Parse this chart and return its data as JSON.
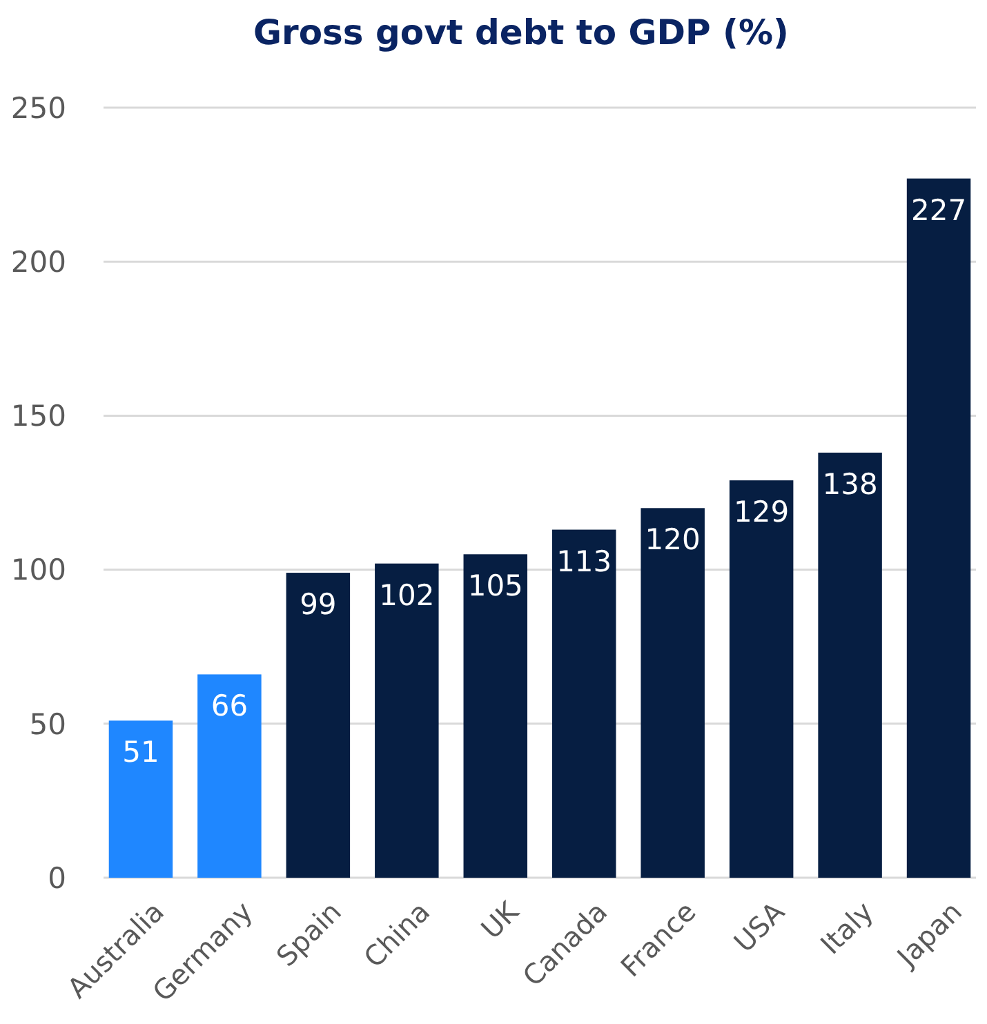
{
  "chart_data": {
    "type": "bar",
    "title": "Gross govt debt to GDP (%)",
    "categories": [
      "Australia",
      "Germany",
      "Spain",
      "China",
      "UK",
      "Canada",
      "France",
      "USA",
      "Italy",
      "Japan"
    ],
    "values": [
      51,
      66,
      99,
      102,
      105,
      113,
      120,
      129,
      138,
      227
    ],
    "colors": [
      "#1f87ff",
      "#1f87ff",
      "#061e42",
      "#061e42",
      "#061e42",
      "#061e42",
      "#061e42",
      "#061e42",
      "#061e42",
      "#061e42"
    ],
    "ylim": [
      0,
      250
    ],
    "yticks": [
      0,
      50,
      100,
      150,
      200,
      250
    ],
    "grid": "y",
    "data_labels": true
  }
}
